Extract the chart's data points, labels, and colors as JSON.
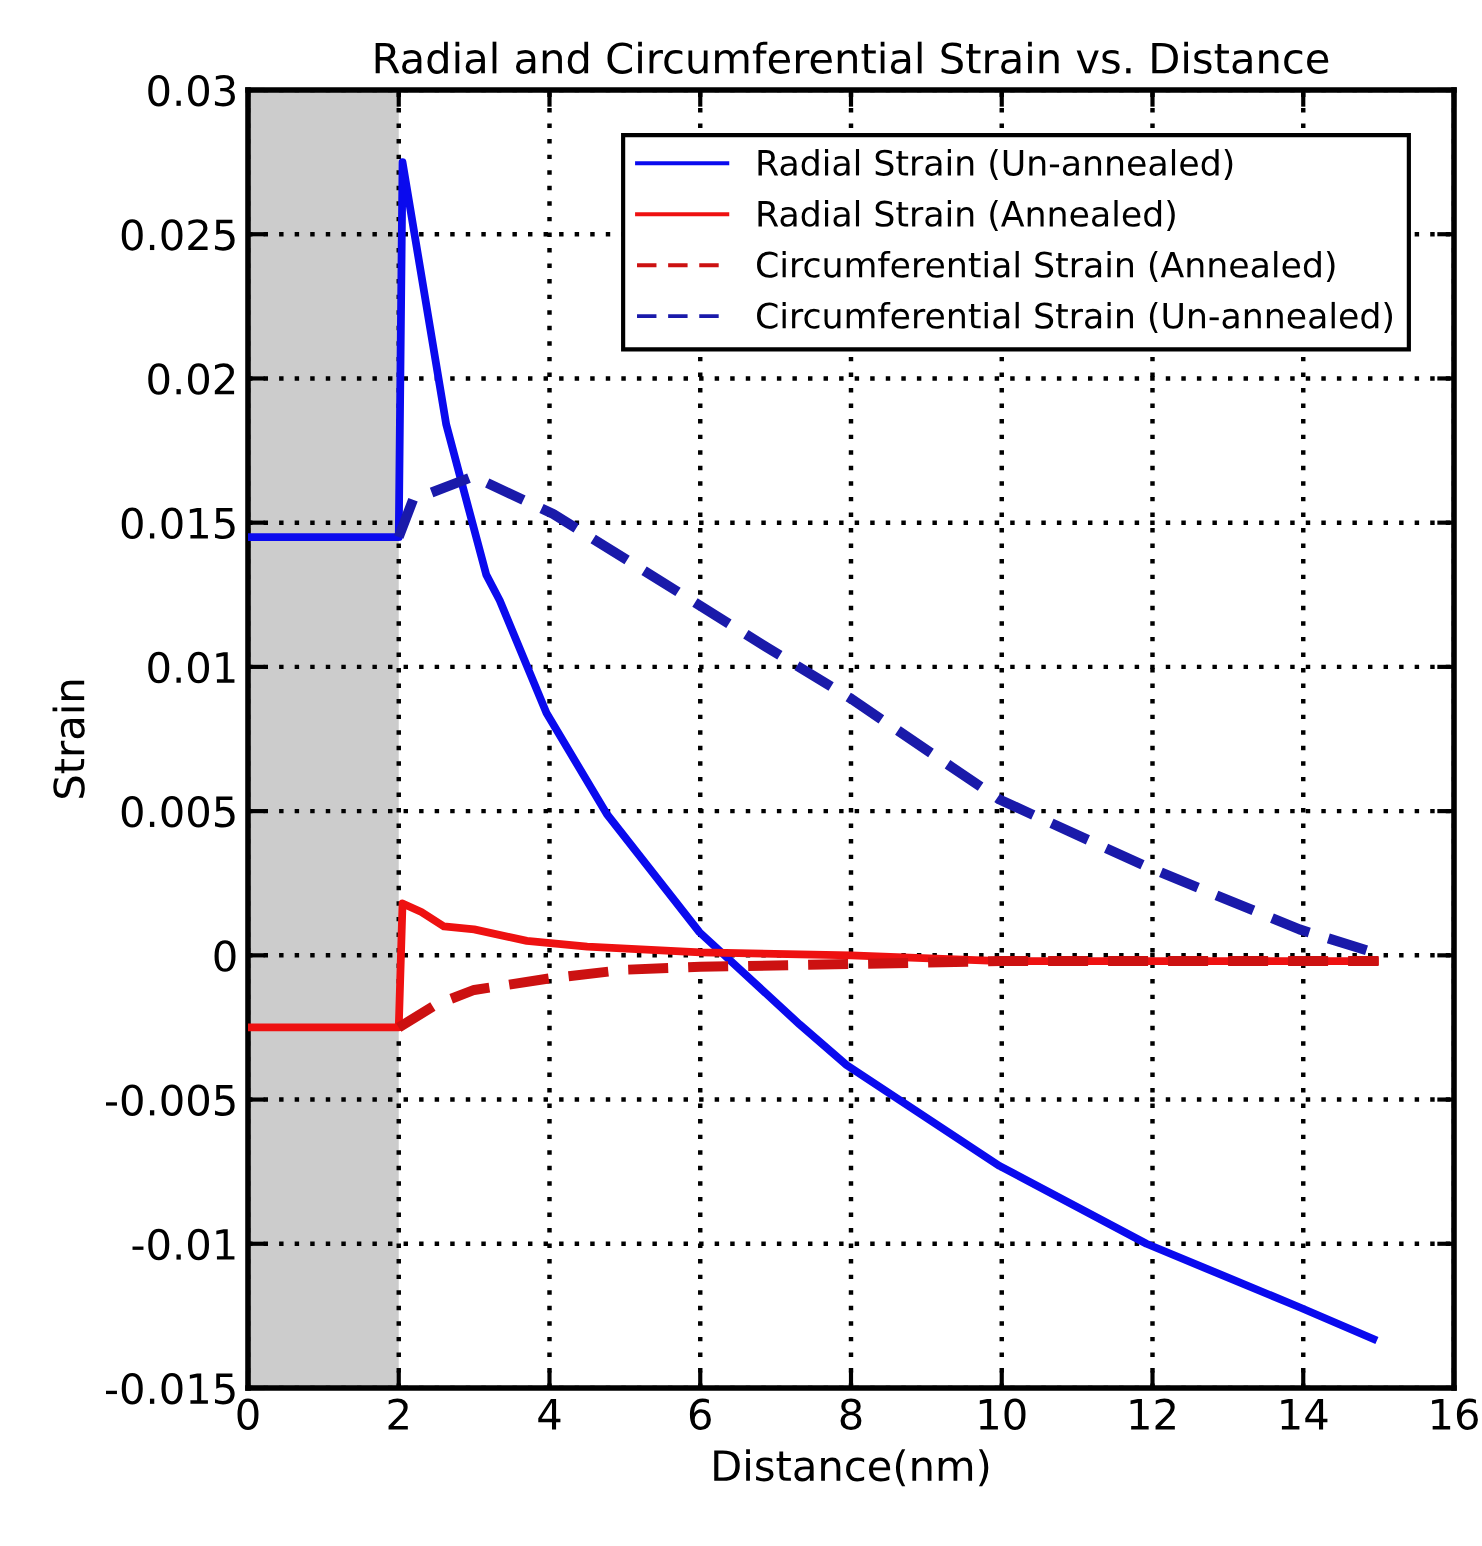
{
  "chart_data": {
    "type": "line",
    "title": "Radial and Circumferential Strain vs. Distance",
    "xlabel": "Distance(nm)",
    "ylabel": "Strain",
    "xlim": [
      0,
      16
    ],
    "xticks": [
      0,
      2,
      4,
      6,
      8,
      10,
      12,
      14,
      16
    ],
    "ylim": [
      -0.015,
      0.03
    ],
    "yticks": [
      -0.015,
      -0.01,
      -0.005,
      0,
      0.005,
      0.01,
      0.015,
      0.02,
      0.025,
      0.03
    ],
    "grid": true,
    "legend": "top right",
    "bands": [
      {
        "axis": "x",
        "from": 0,
        "to": 2,
        "color": "#cccccc"
      }
    ],
    "series": [
      {
        "name": "Radial Strain (Un-annealed)",
        "color": "#0a0aee",
        "line_style": "solid",
        "x": [
          0,
          2,
          2.05,
          2.63,
          3.16,
          3.34,
          3.96,
          4.76,
          5.99,
          7.32,
          7.94,
          9.97,
          11.92,
          13.95,
          14.93
        ],
        "values": [
          0.0145,
          0.0145,
          0.0275,
          0.0184,
          0.0132,
          0.0123,
          0.0084,
          0.0049,
          0.0008,
          -0.0024,
          -0.0038,
          -0.0073,
          -0.01,
          -0.0122,
          -0.0133
        ]
      },
      {
        "name": "Radial Strain (Annealed)",
        "color": "#ee1111",
        "line_style": "solid",
        "x": [
          0,
          2,
          2.05,
          2.3,
          2.6,
          3,
          3.7,
          4.5,
          6,
          8,
          10,
          12,
          14,
          14.95
        ],
        "values": [
          -0.0025,
          -0.0025,
          0.0018,
          0.0015,
          0.001,
          0.0009,
          0.0005,
          0.0003,
          0.0001,
          0,
          -0.0002,
          -0.0002,
          -0.0002,
          -0.0002
        ]
      },
      {
        "name": "Circumferential Strain (Annealed)",
        "color": "#cc1111",
        "line_style": "dashed",
        "x": [
          2,
          2.5,
          3,
          4,
          5,
          6,
          8,
          10,
          12,
          15
        ],
        "values": [
          -0.0025,
          -0.0017,
          -0.0012,
          -0.0008,
          -0.0005,
          -0.0004,
          -0.0003,
          -0.0002,
          -0.0002,
          -0.0002
        ]
      },
      {
        "name": "Circumferential Strain (Un-annealed)",
        "color": "#1a1aaa",
        "line_style": "dashed",
        "x": [
          2,
          2.19,
          2.99,
          4.05,
          6.87,
          8,
          9.97,
          11.9,
          13.95,
          14.93
        ],
        "values": [
          0.0145,
          0.0158,
          0.0166,
          0.0153,
          0.0107,
          0.0089,
          0.0054,
          0.0031,
          0.0009,
          0.0001
        ]
      }
    ]
  }
}
